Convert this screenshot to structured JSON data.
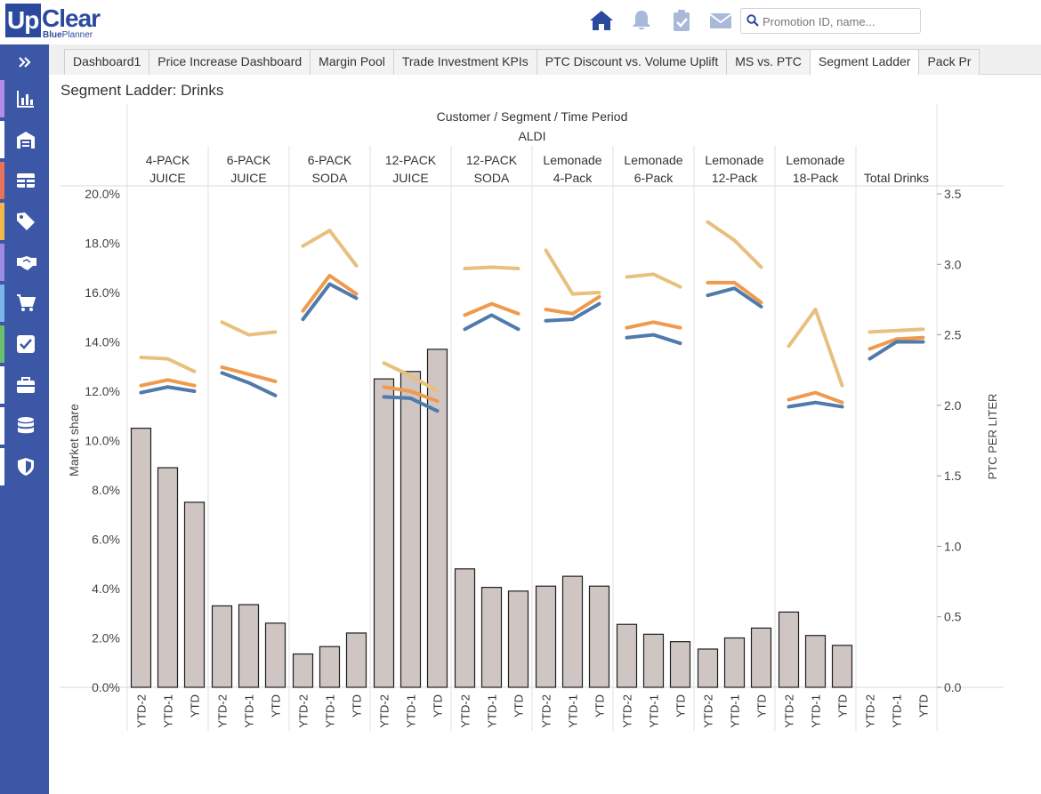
{
  "logo": {
    "up": "Up",
    "clear": "Clear",
    "sub_blue": "Blue",
    "sub_planner": "Planner"
  },
  "topbar": {
    "icons": [
      "home-icon",
      "bell-icon",
      "clipboard-check-icon",
      "envelope-icon"
    ],
    "search_placeholder": "Promotion ID, name..."
  },
  "sidebar": {
    "items": [
      {
        "icon": "expand-icon",
        "accent": ""
      },
      {
        "icon": "bar-chart-icon",
        "accent": "#b48be6"
      },
      {
        "icon": "warehouse-icon",
        "accent": "#ffffff"
      },
      {
        "icon": "grid-icon",
        "accent": "#e8735a"
      },
      {
        "icon": "tag-icon",
        "accent": "#f2b84b"
      },
      {
        "icon": "handshake-icon",
        "accent": "#9c8be0"
      },
      {
        "icon": "cart-icon",
        "accent": "#7ab6e8"
      },
      {
        "icon": "checkbox-icon",
        "accent": "#6cbf6c"
      },
      {
        "icon": "briefcase-icon",
        "accent": "#ffffff"
      },
      {
        "icon": "database-icon",
        "accent": "#ffffff"
      },
      {
        "icon": "shield-icon",
        "accent": "#ffffff"
      }
    ]
  },
  "tabs": [
    "Dashboard1",
    "Price Increase Dashboard",
    "Margin Pool",
    "Trade Investment KPIs",
    "PTC Discount vs. Volume Uplift",
    "MS vs. PTC",
    "Segment Ladder",
    "Pack Pr"
  ],
  "active_tab": "Segment Ladder",
  "page_title": "Segment Ladder: Drinks",
  "chart_data": {
    "type": "bar",
    "header_title": "Customer / Segment / Time Period",
    "customer": "ALDI",
    "segments": [
      {
        "label": [
          "4-PACK",
          "JUICE"
        ]
      },
      {
        "label": [
          "6-PACK",
          "JUICE"
        ]
      },
      {
        "label": [
          "6-PACK",
          "SODA"
        ]
      },
      {
        "label": [
          "12-PACK",
          "JUICE"
        ]
      },
      {
        "label": [
          "12-PACK",
          "SODA"
        ]
      },
      {
        "label": [
          "Lemonade",
          "4-Pack"
        ]
      },
      {
        "label": [
          "Lemonade",
          "6-Pack"
        ]
      },
      {
        "label": [
          "Lemonade",
          "12-Pack"
        ]
      },
      {
        "label": [
          "Lemonade",
          "18-Pack"
        ]
      },
      {
        "label": [
          "Total Drinks"
        ]
      }
    ],
    "periods": [
      "YTD-2",
      "YTD-1",
      "YTD"
    ],
    "ylabel": "Market share",
    "y2label": "PTC PER LITER",
    "ylim": [
      0,
      20
    ],
    "yticks": [
      "0.0%",
      "2.0%",
      "4.0%",
      "6.0%",
      "8.0%",
      "10.0%",
      "12.0%",
      "14.0%",
      "16.0%",
      "18.0%",
      "20.0%"
    ],
    "y2lim": [
      0,
      3.5
    ],
    "y2ticks": [
      "0.0",
      "0.5",
      "1.0",
      "1.5",
      "2.0",
      "2.5",
      "3.0",
      "3.5"
    ],
    "bars": [
      [
        10.5,
        8.9,
        7.5
      ],
      [
        3.3,
        3.35,
        2.6
      ],
      [
        1.35,
        1.65,
        2.2
      ],
      [
        12.5,
        12.8,
        13.7
      ],
      [
        4.8,
        4.05,
        3.9
      ],
      [
        4.1,
        4.5,
        4.1
      ],
      [
        2.55,
        2.15,
        1.85
      ],
      [
        1.55,
        2.0,
        2.4
      ],
      [
        3.05,
        2.1,
        1.7
      ],
      [
        null,
        null,
        null
      ]
    ],
    "line_series": [
      {
        "color": "#e8c07e",
        "values": [
          [
            2.34,
            2.33,
            2.24
          ],
          [
            2.59,
            2.5,
            2.52
          ],
          [
            3.13,
            3.24,
            2.99
          ],
          [
            2.3,
            2.21,
            2.1
          ],
          [
            2.97,
            2.98,
            2.97
          ],
          [
            3.1,
            2.79,
            2.8
          ],
          [
            2.91,
            2.93,
            2.84
          ],
          [
            3.3,
            3.17,
            2.98
          ],
          [
            2.42,
            2.68,
            2.14
          ],
          [
            2.52,
            2.53,
            2.54
          ]
        ]
      },
      {
        "color": "#ef9a4c",
        "values": [
          [
            2.14,
            2.18,
            2.14
          ],
          [
            2.27,
            2.22,
            2.17
          ],
          [
            2.67,
            2.92,
            2.79
          ],
          [
            2.13,
            2.1,
            2.03
          ],
          [
            2.64,
            2.72,
            2.65
          ],
          [
            2.68,
            2.65,
            2.77
          ],
          [
            2.55,
            2.59,
            2.55
          ],
          [
            2.87,
            2.87,
            2.73
          ],
          [
            2.04,
            2.09,
            2.02
          ],
          [
            2.4,
            2.47,
            2.48
          ]
        ]
      },
      {
        "color": "#4f7aab",
        "values": [
          [
            2.09,
            2.13,
            2.1
          ],
          [
            2.23,
            2.16,
            2.07
          ],
          [
            2.61,
            2.86,
            2.76
          ],
          [
            2.06,
            2.05,
            1.96
          ],
          [
            2.54,
            2.64,
            2.54
          ],
          [
            2.6,
            2.61,
            2.72
          ],
          [
            2.48,
            2.5,
            2.44
          ],
          [
            2.78,
            2.83,
            2.7
          ],
          [
            1.99,
            2.02,
            1.99
          ],
          [
            2.33,
            2.45,
            2.45
          ]
        ]
      }
    ]
  }
}
